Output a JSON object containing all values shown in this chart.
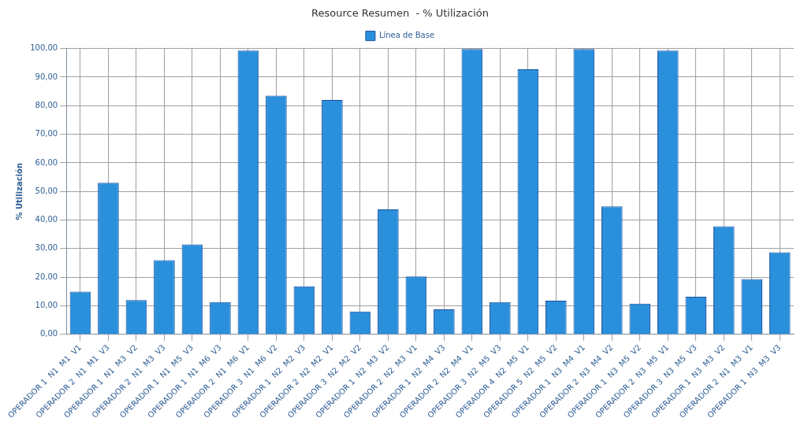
{
  "chart_data": {
    "type": "bar",
    "title": "Resource Resumen  - % Utilización",
    "ylabel": "% Utilización",
    "categories": [
      "OPERADOR 1  N1  M1  V1",
      "OPERADOR 2  N1  M1  V3",
      "OPERADOR 1  N1  M3  V2",
      "OPERADOR 2  N1  M3  V3",
      "OPERADOR 1  N1  M5  V3",
      "OPERADOR 1  N1  M6  V3",
      "OPERADOR 2  N1  M6  V1",
      "OPERADOR 3  N1  M6  V2",
      "OPERADOR 1  N2  M2  V3",
      "OPERADOR 2  N2  M2  V1",
      "OPERADOR 3  N2  M2  V2",
      "OPERADOR 1  N2  M3  V2",
      "OPERADOR 2  N2  M3  V1",
      "OPERADOR 1  N2  M4  V3",
      "OPERADOR 2  N2  M4  V1",
      "OPERADOR 3  N2  M5  V3",
      "OPERADOR 4  N2  M5  V1",
      "OPERADOR 5  N2  M5  V2",
      "OPERADOR 1  N3  M4  V1",
      "OPERADOR 2  N3  M4  V2",
      "OPERADOR 1  N3  M5  V2",
      "OPERADOR 2  N3  M5  V1",
      "OPERADOR 3  N3  M5  V3",
      "OPERADOR 1  N3  M3  V2",
      "OPERADOR 2  N1  M3  V1",
      "OPERADOR 1  N3  M3  V3"
    ],
    "series": [
      {
        "name": "Línea de Base",
        "color": "#2a90dc",
        "values": [
          15,
          53,
          12,
          26,
          31.5,
          11.3,
          99.3,
          83.5,
          16.8,
          82,
          8,
          43.7,
          20.3,
          8.8,
          99.8,
          11.3,
          92.7,
          11.8,
          99.8,
          44.8,
          10.8,
          99.3,
          13.2,
          37.8,
          19.4,
          28.7
        ]
      }
    ],
    "ylim": [
      0,
      100
    ],
    "yticks": [
      {
        "value": 0,
        "label": "0,00"
      },
      {
        "value": 10,
        "label": "10,00"
      },
      {
        "value": 20,
        "label": "20,00"
      },
      {
        "value": 30,
        "label": "30,00"
      },
      {
        "value": 40,
        "label": "40,00"
      },
      {
        "value": 50,
        "label": "50,00"
      },
      {
        "value": 60,
        "label": "60,00"
      },
      {
        "value": 70,
        "label": "70,00"
      },
      {
        "value": 80,
        "label": "80,00"
      },
      {
        "value": 90,
        "label": "90,00"
      },
      {
        "value": 100,
        "label": "100,00"
      }
    ],
    "grid": true,
    "legend": "top"
  }
}
